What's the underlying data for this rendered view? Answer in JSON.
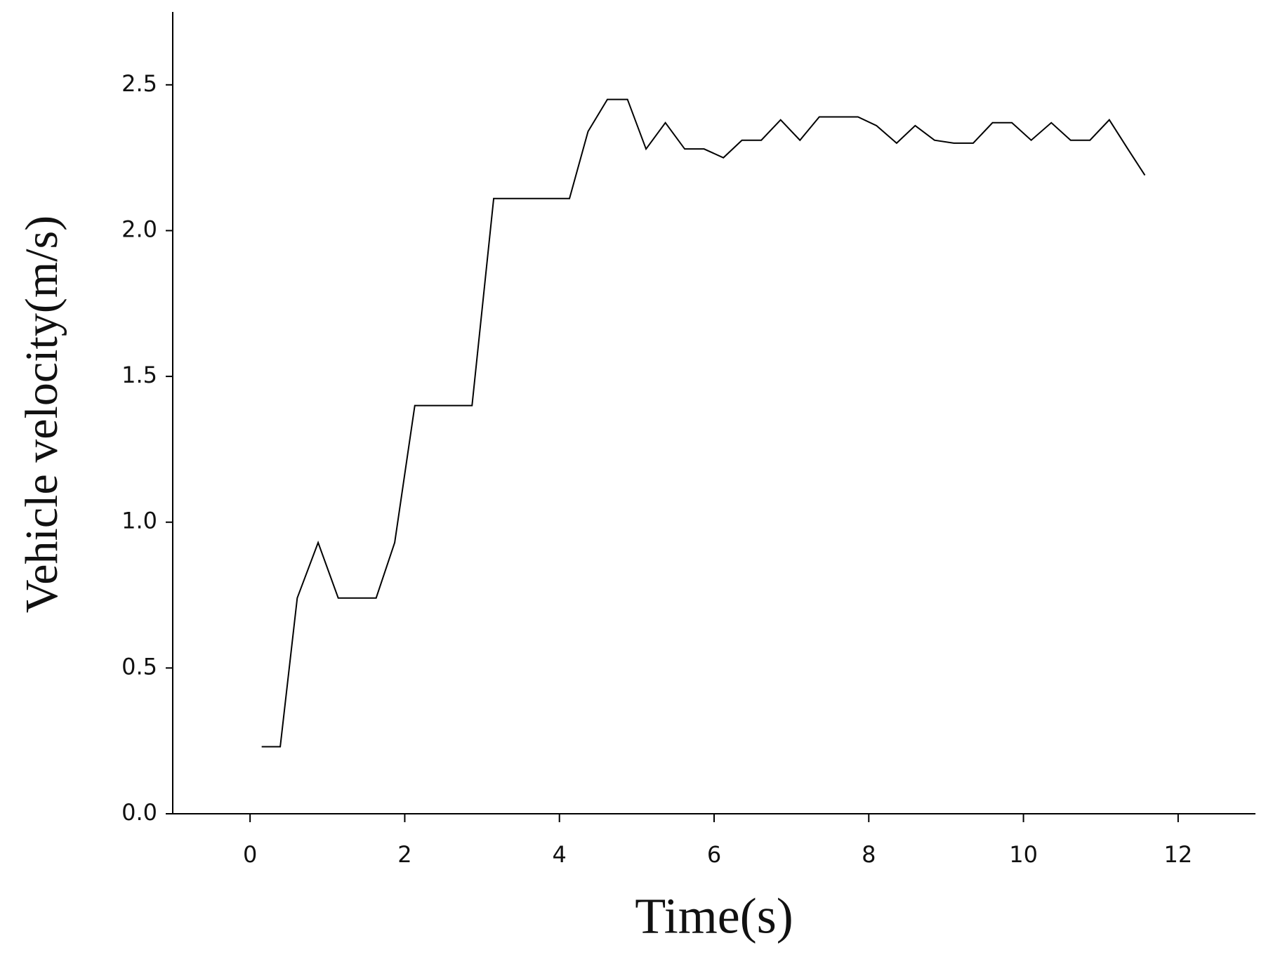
{
  "chart_data": {
    "type": "line",
    "x_label": "Time(s)",
    "y_label": "Vehicle velocity(m/s)",
    "xlim": [
      -1,
      13
    ],
    "xticks": [
      0,
      2,
      4,
      6,
      8,
      10,
      12
    ],
    "ylim": [
      0,
      2.75
    ],
    "yticks": [
      {
        "value": 0,
        "label": "0.0"
      },
      0.5,
      {
        "value": 1,
        "label": "1.0"
      },
      1.5,
      {
        "value": 2,
        "label": "2.0"
      },
      2.5
    ],
    "color": "#000000",
    "x": [
      0.15,
      0.39,
      0.61,
      0.88,
      1.14,
      1.63,
      1.87,
      2.13,
      2.87,
      3.15,
      4.13,
      4.37,
      4.62,
      4.88,
      5.12,
      5.37,
      5.62,
      5.87,
      6.12,
      6.36,
      6.61,
      6.86,
      7.11,
      7.36,
      7.86,
      8.1,
      8.36,
      8.6,
      8.85,
      9.1,
      9.35,
      9.6,
      9.85,
      10.1,
      10.36,
      10.61,
      10.86,
      11.11,
      11.35,
      11.57
    ],
    "values": [
      0.23,
      0.23,
      0.74,
      0.93,
      0.74,
      0.74,
      0.93,
      1.4,
      1.4,
      2.11,
      2.11,
      2.34,
      2.45,
      2.45,
      2.28,
      2.37,
      2.28,
      2.28,
      2.25,
      2.31,
      2.31,
      2.38,
      2.31,
      2.39,
      2.39,
      2.36,
      2.3,
      2.36,
      2.31,
      2.3,
      2.3,
      2.37,
      2.37,
      2.31,
      2.37,
      2.31,
      2.31,
      2.38,
      2.28,
      2.19
    ]
  }
}
